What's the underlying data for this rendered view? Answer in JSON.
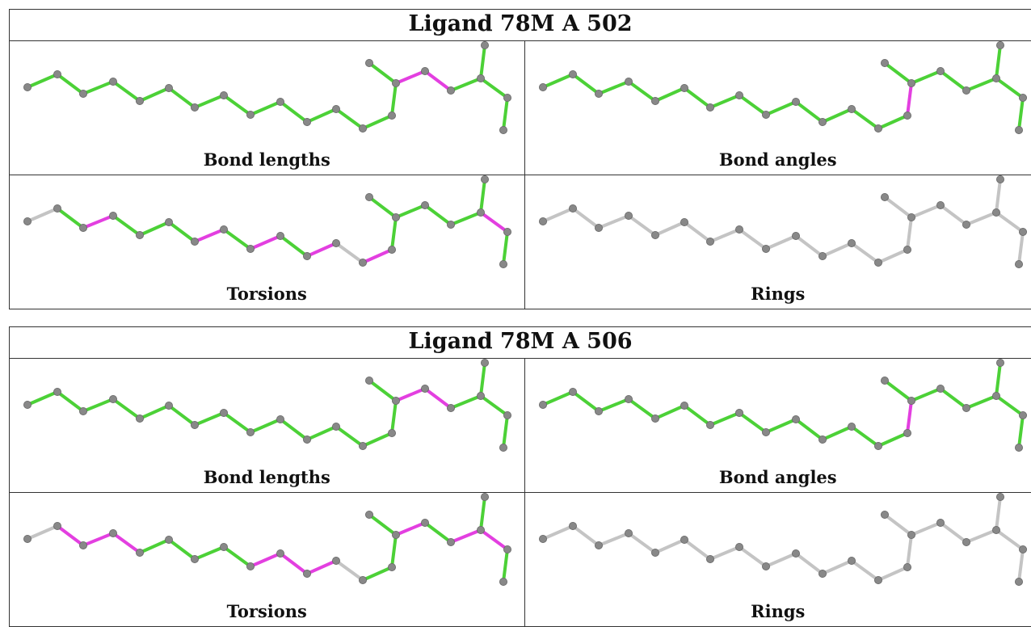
{
  "colors": {
    "ok": "#4cd137",
    "outlier": "#e33fe0",
    "neutral": "#c4c4c4",
    "atom": "#888888"
  },
  "ligands": [
    {
      "title": "Ligand 78M A 502",
      "panels": [
        {
          "label": "Bond lengths",
          "default_color": "ok",
          "outlier_bonds": [
            14,
            15
          ]
        },
        {
          "label": "Bond angles",
          "default_color": "ok",
          "outlier_bonds": [
            13
          ]
        },
        {
          "label": "Torsions",
          "default_color": "ok",
          "neutral_bonds": [
            0,
            11
          ],
          "outlier_bonds": [
            2,
            6,
            8,
            10,
            12,
            18
          ]
        },
        {
          "label": "Rings",
          "default_color": "neutral",
          "outlier_bonds": []
        }
      ]
    },
    {
      "title": "Ligand 78M A 506",
      "panels": [
        {
          "label": "Bond lengths",
          "default_color": "ok",
          "outlier_bonds": [
            14,
            15
          ]
        },
        {
          "label": "Bond angles",
          "default_color": "ok",
          "outlier_bonds": [
            13
          ]
        },
        {
          "label": "Torsions",
          "default_color": "ok",
          "neutral_bonds": [
            0,
            11
          ],
          "outlier_bonds": [
            1,
            2,
            3,
            8,
            9,
            10,
            14,
            17,
            18
          ]
        },
        {
          "label": "Rings",
          "default_color": "neutral",
          "outlier_bonds": []
        }
      ]
    }
  ]
}
